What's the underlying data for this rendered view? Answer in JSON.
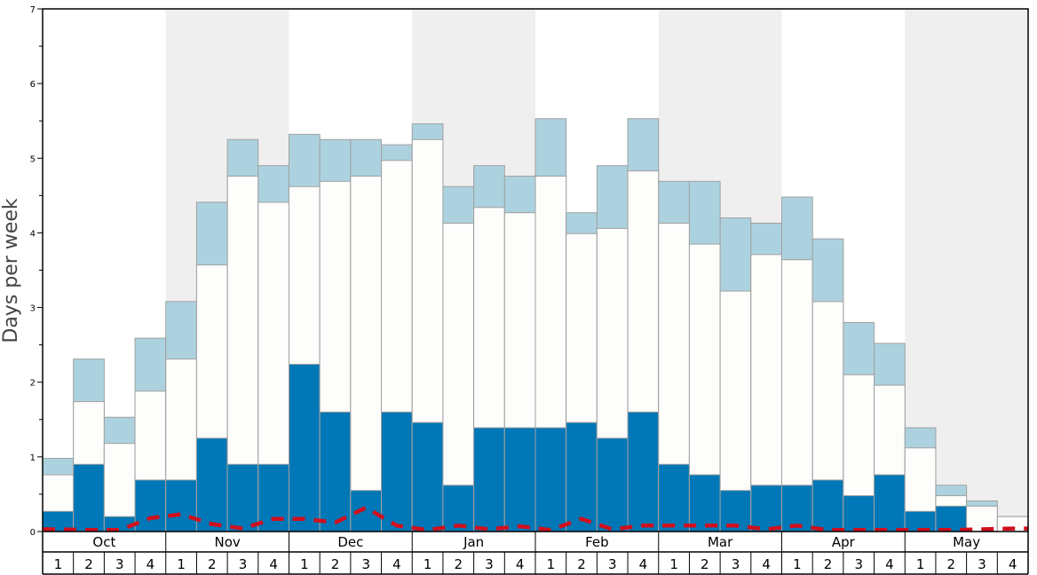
{
  "chart_data": {
    "type": "bar",
    "ylabel": "Days per week",
    "xlabel": "",
    "ylim": [
      0,
      7
    ],
    "yticks": [
      0,
      1,
      2,
      3,
      4,
      5,
      6,
      7
    ],
    "months": [
      "Oct",
      "Nov",
      "Dec",
      "Jan",
      "Feb",
      "Mar",
      "Apr",
      "May"
    ],
    "week_labels": [
      "1",
      "2",
      "3",
      "4"
    ],
    "shaded_months": [
      "Nov",
      "Jan",
      "Mar",
      "May"
    ],
    "colors": {
      "dark_segment": "#0077b6",
      "white_segment": "#fdfdfb",
      "light_segment": "#add2df",
      "bar_border": "#a0a0a0",
      "shade_band": "#f0eff0",
      "dashed_line": "#d0101e"
    },
    "series": [
      {
        "values": [
          0.27,
          0.9,
          0.2,
          0.69,
          0.69,
          1.25,
          0.9,
          0.9,
          2.24,
          1.6,
          0.55,
          1.6,
          1.46,
          0.62,
          1.39,
          1.39,
          1.39,
          1.46,
          1.25,
          1.6,
          0.9,
          0.76,
          0.55,
          0.62,
          0.62,
          0.69,
          0.48,
          0.76,
          0.27,
          0.34,
          0.0,
          0.0
        ]
      },
      {
        "values": [
          0.76,
          1.74,
          1.18,
          1.88,
          2.31,
          3.57,
          4.76,
          4.41,
          4.62,
          4.69,
          4.76,
          4.97,
          5.25,
          4.13,
          4.34,
          4.27,
          4.76,
          3.99,
          4.06,
          4.83,
          4.13,
          3.85,
          3.22,
          3.71,
          3.64,
          3.08,
          2.1,
          1.96,
          1.12,
          0.48,
          0.34,
          0.2
        ]
      },
      {
        "values": [
          0.98,
          2.31,
          1.53,
          2.59,
          3.08,
          4.41,
          5.25,
          4.9,
          5.32,
          5.25,
          5.25,
          5.18,
          5.46,
          4.62,
          4.9,
          4.76,
          5.53,
          4.27,
          4.9,
          5.53,
          4.69,
          4.69,
          4.2,
          4.13,
          4.48,
          3.92,
          2.8,
          2.52,
          1.39,
          0.62,
          0.41,
          0.2
        ]
      },
      {
        "values": [
          0.03,
          0.02,
          0.02,
          0.18,
          0.23,
          0.1,
          0.04,
          0.17,
          0.17,
          0.12,
          0.32,
          0.08,
          0.02,
          0.08,
          0.03,
          0.07,
          0.02,
          0.17,
          0.03,
          0.08,
          0.08,
          0.08,
          0.08,
          0.03,
          0.08,
          0.02,
          0.02,
          0.02,
          0.02,
          0.02,
          0.03,
          0.04
        ]
      }
    ]
  }
}
